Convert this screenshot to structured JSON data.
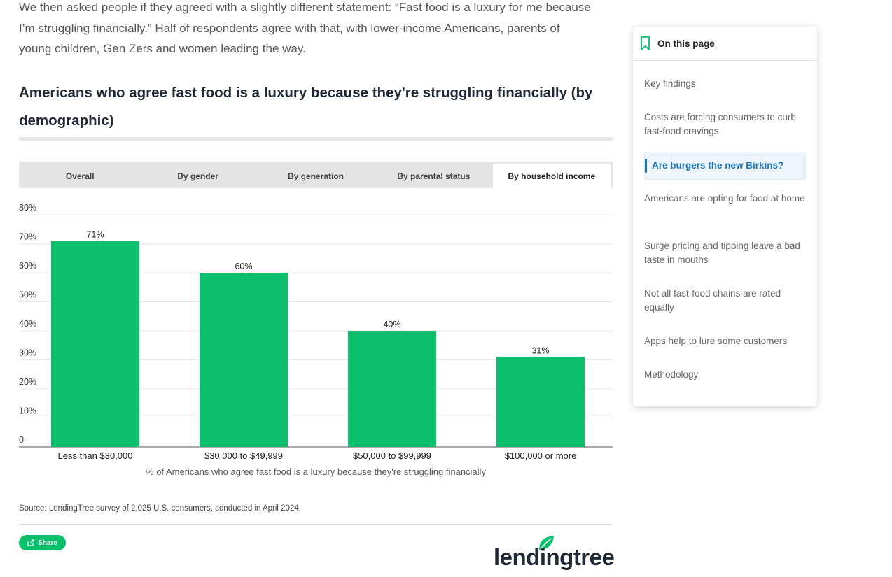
{
  "article": {
    "intro": "We then asked people if they agreed with a slightly different statement: “Fast food is a luxury for me because I’m struggling financially.” Half of respondents agree with that, with lower-income Americans, parents of young children, Gen Zers and women leading the way.",
    "chart_title": "Americans who agree fast food is a luxury because they're struggling financially (by demographic)"
  },
  "tabs": [
    "Overall",
    "By gender",
    "By generation",
    "By parental status",
    "By household income"
  ],
  "active_tab": "By household income",
  "chart_data": {
    "type": "bar",
    "title": "",
    "categories": [
      "Less than $30,000",
      "$30,000 to $49,999",
      "$50,000 to $99,999",
      "$100,000 or more"
    ],
    "values": [
      71,
      60,
      40,
      31
    ],
    "data_labels": [
      "71%",
      "60%",
      "40%",
      "31%"
    ],
    "xlabel": "% of Americans who agree fast food is a luxury because they're struggling financially",
    "ylabel": "",
    "ylim": [
      0,
      80
    ],
    "yticks": [
      0,
      10,
      20,
      30,
      40,
      50,
      60,
      70,
      80
    ],
    "ytick_labels": [
      "0",
      "10%",
      "20%",
      "30%",
      "40%",
      "50%",
      "60%",
      "70%",
      "80%"
    ],
    "bar_color": "#0bbf6c",
    "grid": true,
    "legend": "none"
  },
  "source": "Source: LendingTree survey of 2,025 U.S. consumers, conducted in April 2024.",
  "share_label": "Share",
  "logo_text": "lendingtree",
  "toc": {
    "heading": "On this page",
    "items": [
      {
        "label": "Key findings",
        "active": false
      },
      {
        "label": "Costs are forcing consumers to curb fast-food cravings",
        "active": false
      },
      {
        "label": "Are burgers the new Birkins?",
        "active": true
      },
      {
        "label": "Americans are opting for food at home",
        "active": false
      },
      {
        "label": "Surge pricing and tipping leave a bad taste in mouths",
        "active": false
      },
      {
        "label": "Not all fast-food chains are rated equally",
        "active": false
      },
      {
        "label": "Apps help to lure some customers",
        "active": false
      },
      {
        "label": "Methodology",
        "active": false
      }
    ]
  },
  "colors": {
    "accent": "#0bbf6c",
    "link_active": "#1a73b5",
    "heading": "#1f2a36"
  }
}
